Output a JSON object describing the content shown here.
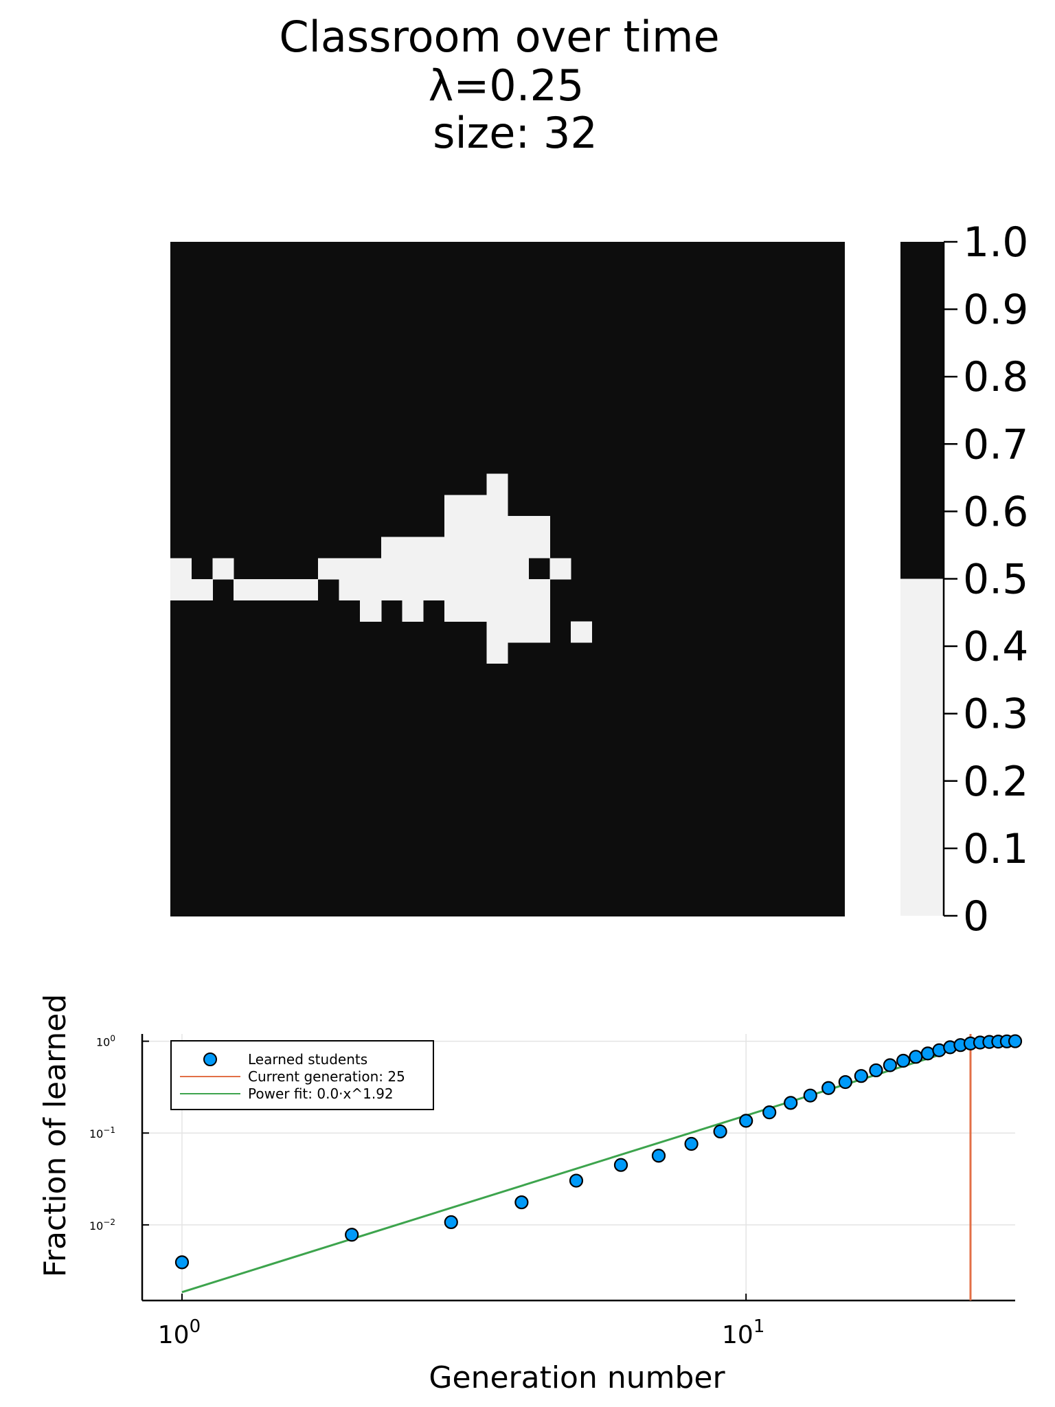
{
  "chart_data": [
    {
      "type": "heatmap",
      "title_lines": [
        "Classroom over time",
        "λ=0.25",
        "size: 32"
      ],
      "rows": 32,
      "cols": 32,
      "value_range": [
        0,
        1
      ],
      "colorbar": {
        "ticks": [
          "0",
          "0.1",
          "0.2",
          "0.3",
          "0.4",
          "0.5",
          "0.6",
          "0.7",
          "0.8",
          "0.9",
          "1.0"
        ],
        "threshold": 0.5,
        "low_color": "#f2f2f2",
        "high_color": "#0d0d0d"
      },
      "background_value": 1,
      "low_cells": [
        [
          11,
          15
        ],
        [
          12,
          13
        ],
        [
          12,
          14
        ],
        [
          12,
          15
        ],
        [
          13,
          13
        ],
        [
          13,
          14
        ],
        [
          13,
          15
        ],
        [
          13,
          16
        ],
        [
          13,
          17
        ],
        [
          14,
          10
        ],
        [
          14,
          11
        ],
        [
          14,
          12
        ],
        [
          14,
          13
        ],
        [
          14,
          14
        ],
        [
          14,
          15
        ],
        [
          14,
          16
        ],
        [
          14,
          17
        ],
        [
          15,
          0
        ],
        [
          15,
          2
        ],
        [
          15,
          7
        ],
        [
          15,
          8
        ],
        [
          15,
          9
        ],
        [
          15,
          10
        ],
        [
          15,
          11
        ],
        [
          15,
          12
        ],
        [
          15,
          13
        ],
        [
          15,
          14
        ],
        [
          15,
          15
        ],
        [
          15,
          16
        ],
        [
          15,
          18
        ],
        [
          16,
          0
        ],
        [
          16,
          1
        ],
        [
          16,
          3
        ],
        [
          16,
          4
        ],
        [
          16,
          5
        ],
        [
          16,
          6
        ],
        [
          16,
          8
        ],
        [
          16,
          9
        ],
        [
          16,
          10
        ],
        [
          16,
          11
        ],
        [
          16,
          12
        ],
        [
          16,
          13
        ],
        [
          16,
          14
        ],
        [
          16,
          15
        ],
        [
          16,
          16
        ],
        [
          16,
          17
        ],
        [
          17,
          9
        ],
        [
          17,
          11
        ],
        [
          17,
          13
        ],
        [
          17,
          14
        ],
        [
          17,
          15
        ],
        [
          17,
          16
        ],
        [
          17,
          17
        ],
        [
          18,
          15
        ],
        [
          18,
          16
        ],
        [
          18,
          17
        ],
        [
          18,
          19
        ],
        [
          19,
          15
        ]
      ]
    },
    {
      "type": "scatter",
      "xlabel": "Generation number",
      "ylabel": "Fraction of learned",
      "xscale": "log",
      "yscale": "log",
      "xlim": [
        0.85,
        30
      ],
      "ylim": [
        0.0015,
        1.2
      ],
      "x_ticks": [
        {
          "base": "10",
          "exp": "0",
          "value": 1
        },
        {
          "base": "10",
          "exp": "1",
          "value": 10
        }
      ],
      "y_ticks": [
        {
          "base": "10",
          "exp": "0",
          "value": 1
        },
        {
          "base": "10",
          "exp": "−1",
          "value": 0.1
        },
        {
          "base": "10",
          "exp": "−2",
          "value": 0.01
        }
      ],
      "grid": true,
      "legend_position": "top-left",
      "series": [
        {
          "name": "Learned students",
          "kind": "points",
          "color": "#009af9",
          "x": [
            1,
            2,
            3,
            4,
            5,
            6,
            7,
            8,
            9,
            10,
            11,
            12,
            13,
            14,
            15,
            16,
            17,
            18,
            19,
            20,
            21,
            22,
            23,
            24,
            25,
            26,
            27,
            28,
            29,
            30
          ],
          "y": [
            0.00391,
            0.00781,
            0.0107,
            0.0176,
            0.0303,
            0.0449,
            0.0566,
            0.0762,
            0.104,
            0.136,
            0.168,
            0.213,
            0.256,
            0.309,
            0.359,
            0.418,
            0.482,
            0.548,
            0.613,
            0.676,
            0.736,
            0.797,
            0.859,
            0.908,
            0.945,
            0.967,
            0.982,
            0.991,
            0.996,
            1.0
          ]
        },
        {
          "name": "Current generation: 25",
          "kind": "vline",
          "color": "#e26f46",
          "x": 25
        },
        {
          "name": "Power fit: 0.0·x^1.92",
          "kind": "line",
          "color": "#3da44d",
          "x": [
            1,
            22
          ],
          "y": [
            0.00185,
            0.707
          ]
        }
      ]
    }
  ]
}
